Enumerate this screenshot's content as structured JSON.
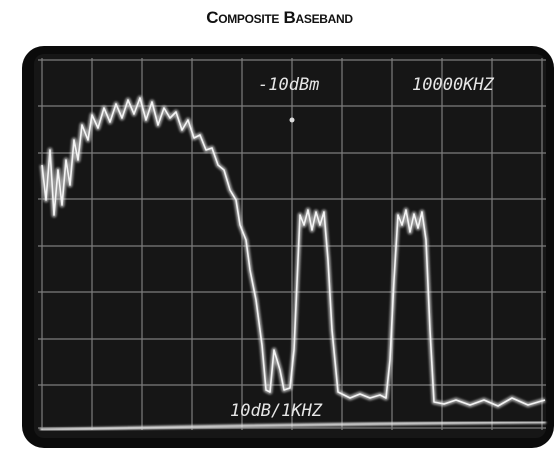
{
  "header": {
    "title": "Composite Baseband"
  },
  "screen": {
    "reference_level": "-10dBm",
    "center_frequency": "10000KHZ",
    "scale": "10dB/1KHZ"
  }
}
